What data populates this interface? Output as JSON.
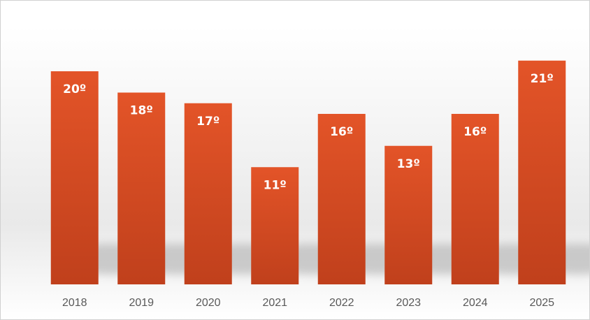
{
  "chart_data": {
    "type": "bar",
    "categories": [
      "2018",
      "2019",
      "2020",
      "2021",
      "2022",
      "2023",
      "2024",
      "2025"
    ],
    "values": [
      20,
      18,
      17,
      11,
      16,
      13,
      16,
      21
    ],
    "data_labels": [
      "20º",
      "18º",
      "17º",
      "11º",
      "16º",
      "13º",
      "16º",
      "21º"
    ],
    "title": "",
    "xlabel": "",
    "ylabel": "",
    "ylim": [
      0,
      27
    ],
    "grid": false,
    "legend": "none",
    "bar_color_top": "#e35428",
    "bar_color_bottom": "#c0401c",
    "label_color": "#ffffff",
    "tick_color": "#595959"
  }
}
